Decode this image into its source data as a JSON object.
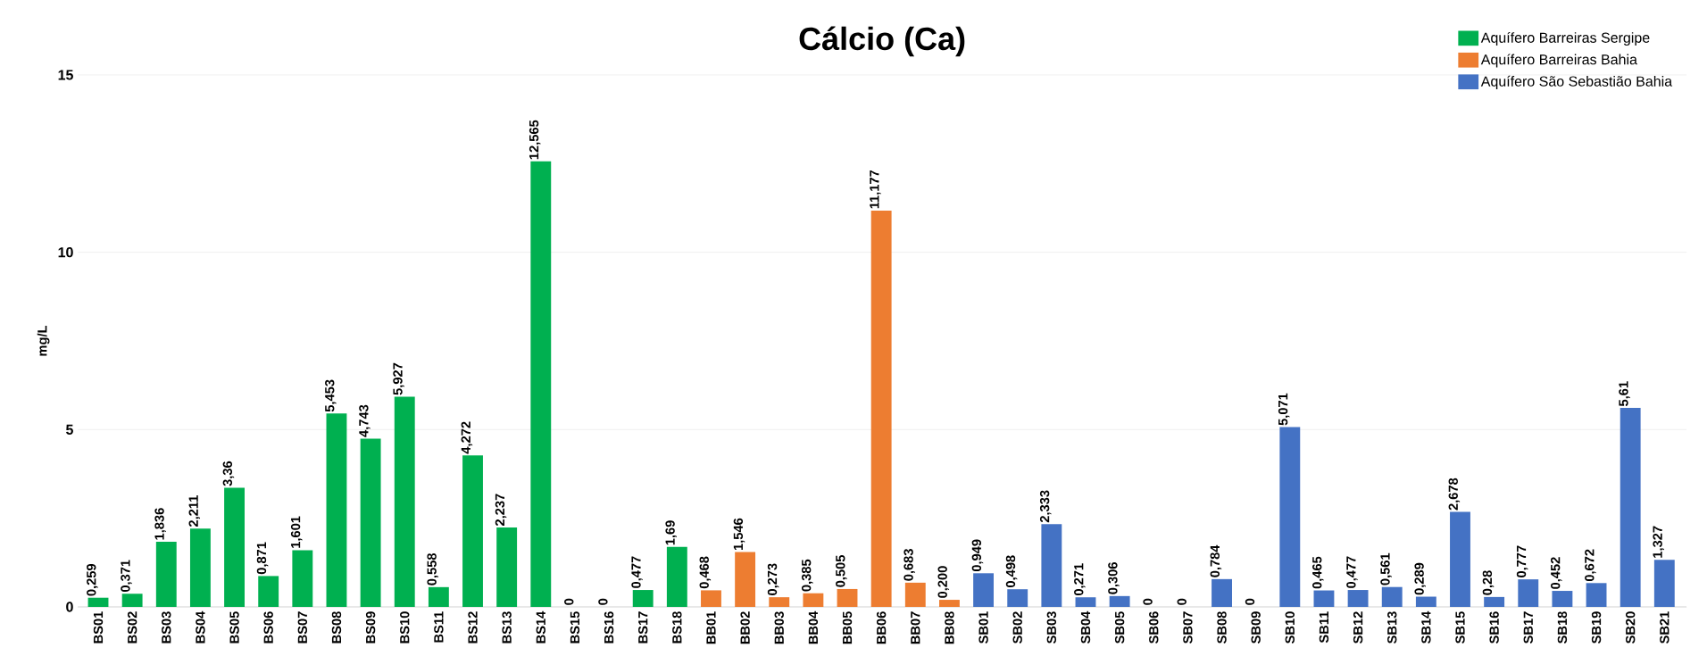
{
  "chart_data": {
    "type": "bar",
    "title": "Cálcio (Ca)",
    "ylabel": "mg/L",
    "categories": [
      "BS01",
      "BS02",
      "BS03",
      "BS04",
      "BS05",
      "BS06",
      "BS07",
      "BS08",
      "BS09",
      "BS10",
      "BS11",
      "BS12",
      "BS13",
      "BS14",
      "BS15",
      "BS16",
      "BS17",
      "BS18",
      "BB01",
      "BB02",
      "BB03",
      "BB04",
      "BB05",
      "BB06",
      "BB07",
      "BB08",
      "SB01",
      "SB02",
      "SB03",
      "SB04",
      "SB05",
      "SB06",
      "SB07",
      "SB08",
      "SB09",
      "SB10",
      "SB11",
      "SB12",
      "SB13",
      "SB14",
      "SB15",
      "SB16",
      "SB17",
      "SB18",
      "SB19",
      "SB20",
      "SB21"
    ],
    "series": [
      {
        "name": "Aquífero Barreiras Sergipe",
        "color": "#00b050",
        "values": [
          0.259,
          0.371,
          1.836,
          2.211,
          3.36,
          0.871,
          1.601,
          5.453,
          4.743,
          5.927,
          0.558,
          4.272,
          2.237,
          12.565,
          0,
          0,
          0.477,
          1.69,
          null,
          null,
          null,
          null,
          null,
          null,
          null,
          null,
          null,
          null,
          null,
          null,
          null,
          null,
          null,
          null,
          null,
          null,
          null,
          null,
          null,
          null,
          null,
          null,
          null,
          null,
          null,
          null,
          null
        ],
        "value_labels": [
          "0,259",
          "0,371",
          "1,836",
          "2,211",
          "3,36",
          "0,871",
          "1,601",
          "5,453",
          "4,743",
          "5,927",
          "0,558",
          "4,272",
          "2,237",
          "12,565",
          "0",
          "0",
          "0,477",
          "1,69",
          null,
          null,
          null,
          null,
          null,
          null,
          null,
          null,
          null,
          null,
          null,
          null,
          null,
          null,
          null,
          null,
          null,
          null,
          null,
          null,
          null,
          null,
          null,
          null,
          null,
          null,
          null,
          null,
          null
        ]
      },
      {
        "name": "Aquífero Barreiras Bahia",
        "color": "#ed7d31",
        "values": [
          null,
          null,
          null,
          null,
          null,
          null,
          null,
          null,
          null,
          null,
          null,
          null,
          null,
          null,
          null,
          null,
          null,
          null,
          0.468,
          1.546,
          0.273,
          0.385,
          0.505,
          11.177,
          0.683,
          0.2,
          null,
          null,
          null,
          null,
          null,
          null,
          null,
          null,
          null,
          null,
          null,
          null,
          null,
          null,
          null,
          null,
          null,
          null,
          null,
          null,
          null
        ],
        "value_labels": [
          null,
          null,
          null,
          null,
          null,
          null,
          null,
          null,
          null,
          null,
          null,
          null,
          null,
          null,
          null,
          null,
          null,
          null,
          "0,468",
          "1,546",
          "0,273",
          "0,385",
          "0,505",
          "11,177",
          "0,683",
          "0,200",
          null,
          null,
          null,
          null,
          null,
          null,
          null,
          null,
          null,
          null,
          null,
          null,
          null,
          null,
          null,
          null,
          null,
          null,
          null,
          null,
          null
        ]
      },
      {
        "name": "Aquífero São Sebastião Bahia",
        "color": "#4472c4",
        "values": [
          null,
          null,
          null,
          null,
          null,
          null,
          null,
          null,
          null,
          null,
          null,
          null,
          null,
          null,
          null,
          null,
          null,
          null,
          null,
          null,
          null,
          null,
          null,
          null,
          null,
          null,
          0.949,
          0.498,
          2.333,
          0.271,
          0.306,
          0,
          0,
          0.784,
          0,
          5.071,
          0.465,
          0.477,
          0.561,
          0.289,
          2.678,
          0.28,
          0.777,
          0.452,
          0.672,
          5.61,
          1.327
        ],
        "value_labels": [
          null,
          null,
          null,
          null,
          null,
          null,
          null,
          null,
          null,
          null,
          null,
          null,
          null,
          null,
          null,
          null,
          null,
          null,
          null,
          null,
          null,
          null,
          null,
          null,
          null,
          null,
          "0,949",
          "0,498",
          "2,333",
          "0,271",
          "0,306",
          "0",
          "0",
          "0,784",
          "0",
          "5,071",
          "0,465",
          "0,477",
          "0,561",
          "0,289",
          "2,678",
          "0,28",
          "0,777",
          "0,452",
          "0,672",
          "5,61",
          "1,327"
        ]
      }
    ],
    "ylim": [
      0,
      15
    ],
    "yticks": [
      0,
      5,
      10,
      15
    ],
    "grid": "y",
    "legend": "top right"
  }
}
